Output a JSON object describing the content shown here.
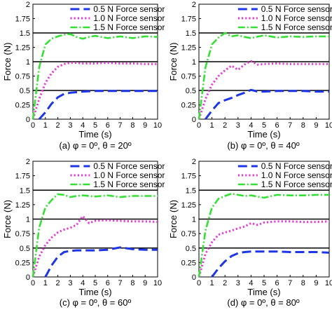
{
  "figure": {
    "panel_caption_prefixes": [
      "(a)",
      "(b)",
      "(c)",
      "(d)"
    ],
    "caption_text": [
      "(a) φ = 0º, θ = 20º",
      "(b) φ = 0º, θ = 40º",
      "(c) φ = 0º, θ = 60º",
      "(d) φ = 0º, θ = 80º"
    ],
    "x_label": "Time (s)",
    "y_label": "Force (N)",
    "x_ticks": [
      "0",
      "1",
      "2",
      "3",
      "4",
      "5",
      "6",
      "7",
      "8",
      "9",
      "10"
    ],
    "y_ticks": [
      "0",
      "0.25",
      "0.5",
      "0.75",
      "1",
      "1.25",
      "1.5",
      "1.75",
      "2"
    ],
    "legend": [
      "0.5 N Force sensor",
      "1.0 N Force sensor",
      "1.5 N Force sensor"
    ],
    "colors": {
      "s05": "#1e36e6",
      "s10": "#e63ad6",
      "s15": "#33e033",
      "ref": "#000000"
    }
  },
  "chart_data": [
    {
      "type": "line",
      "caption": "(a) φ = 0º, θ = 20º",
      "xlabel": "Time (s)",
      "ylabel": "Force (N)",
      "xlim": [
        0,
        10
      ],
      "ylim": [
        0,
        2
      ],
      "reference_lines": [
        0.5,
        1,
        1.5
      ],
      "legend_position": "top-right",
      "series": [
        {
          "name": "0.5 N Force sensor",
          "style": "dashed",
          "x": [
            0.5,
            1,
            1.5,
            2,
            2.5,
            3,
            3.5,
            4,
            5,
            6,
            7,
            8,
            9,
            10
          ],
          "y": [
            0,
            0.12,
            0.27,
            0.38,
            0.44,
            0.46,
            0.47,
            0.48,
            0.49,
            0.49,
            0.49,
            0.49,
            0.49,
            0.49
          ]
        },
        {
          "name": "1.0 N Force sensor",
          "style": "dotted",
          "x": [
            0,
            0.5,
            1,
            1.5,
            2,
            2.5,
            3,
            3.5,
            4,
            5,
            6,
            7,
            8,
            9,
            10
          ],
          "y": [
            0,
            0.35,
            0.63,
            0.8,
            0.91,
            0.96,
            0.98,
            0.98,
            0.97,
            0.97,
            0.98,
            0.97,
            0.97,
            0.96,
            0.96
          ]
        },
        {
          "name": "1.5 N Force sensor",
          "style": "dash-dot",
          "x": [
            0,
            0.5,
            1,
            1.5,
            2,
            2.5,
            3,
            3.5,
            4,
            4.5,
            5,
            6,
            7,
            8,
            9,
            10
          ],
          "y": [
            0,
            0.9,
            1.3,
            1.4,
            1.44,
            1.47,
            1.48,
            1.43,
            1.4,
            1.43,
            1.45,
            1.41,
            1.44,
            1.41,
            1.44,
            1.43
          ]
        }
      ]
    },
    {
      "type": "line",
      "caption": "(b) φ = 0º, θ = 40º",
      "xlabel": "Time (s)",
      "ylabel": "Force (N)",
      "xlim": [
        0,
        10
      ],
      "ylim": [
        0,
        2
      ],
      "reference_lines": [
        0.5,
        1,
        1.5
      ],
      "legend_position": "top-right",
      "series": [
        {
          "name": "0.5 N Force sensor",
          "style": "dashed",
          "x": [
            0.5,
            1,
            1.5,
            2,
            2.5,
            3,
            3.5,
            4,
            4.5,
            5,
            6,
            7,
            8,
            9,
            10
          ],
          "y": [
            0,
            0.15,
            0.28,
            0.33,
            0.37,
            0.42,
            0.46,
            0.51,
            0.48,
            0.48,
            0.49,
            0.49,
            0.49,
            0.48,
            0.48
          ]
        },
        {
          "name": "1.0 N Force sensor",
          "style": "dotted",
          "x": [
            0,
            0.5,
            1,
            1.5,
            2,
            2.5,
            3,
            3.5,
            4,
            4.5,
            5,
            6,
            7,
            8,
            9,
            10
          ],
          "y": [
            0,
            0.35,
            0.6,
            0.75,
            0.85,
            0.93,
            0.86,
            0.95,
            1.01,
            0.95,
            0.96,
            0.97,
            0.96,
            0.96,
            0.96,
            0.96
          ]
        },
        {
          "name": "1.5 N Force sensor",
          "style": "dash-dot",
          "x": [
            0,
            0.5,
            1,
            1.5,
            2,
            2.5,
            3,
            3.5,
            4,
            5,
            6,
            7,
            8,
            9,
            10
          ],
          "y": [
            0,
            0.9,
            1.3,
            1.42,
            1.5,
            1.44,
            1.46,
            1.43,
            1.41,
            1.46,
            1.42,
            1.44,
            1.43,
            1.44,
            1.44
          ]
        }
      ]
    },
    {
      "type": "line",
      "caption": "(c) φ = 0º, θ = 60º",
      "xlabel": "Time (s)",
      "ylabel": "Force (N)",
      "xlim": [
        0,
        10
      ],
      "ylim": [
        0,
        2
      ],
      "reference_lines": [
        0.5,
        1,
        1.5
      ],
      "legend_position": "top-right",
      "series": [
        {
          "name": "0.5 N Force sensor",
          "style": "dashed",
          "x": [
            1,
            1.5,
            2,
            2.5,
            3,
            3.5,
            4,
            5,
            6,
            7,
            8,
            9,
            10
          ],
          "y": [
            0,
            0.2,
            0.35,
            0.43,
            0.45,
            0.46,
            0.46,
            0.46,
            0.47,
            0.51,
            0.48,
            0.47,
            0.47
          ]
        },
        {
          "name": "1.0 N Force sensor",
          "style": "dotted",
          "x": [
            0,
            0.5,
            1,
            1.5,
            2,
            2.5,
            3,
            3.5,
            4,
            4.5,
            5,
            6,
            7,
            8,
            9,
            10
          ],
          "y": [
            0,
            0.35,
            0.55,
            0.68,
            0.77,
            0.82,
            0.85,
            0.9,
            1.05,
            0.93,
            0.97,
            0.98,
            0.97,
            0.96,
            0.96,
            0.95
          ]
        },
        {
          "name": "1.5 N Force sensor",
          "style": "dash-dot",
          "x": [
            0,
            0.5,
            1,
            1.5,
            2,
            2.5,
            3,
            3.5,
            4,
            5,
            6,
            7,
            8,
            9,
            10
          ],
          "y": [
            0,
            0.85,
            1.2,
            1.33,
            1.43,
            1.42,
            1.38,
            1.4,
            1.41,
            1.39,
            1.41,
            1.38,
            1.4,
            1.4,
            1.4
          ]
        }
      ]
    },
    {
      "type": "line",
      "caption": "(d) φ = 0º, θ = 80º",
      "xlabel": "Time (s)",
      "ylabel": "Force (N)",
      "xlim": [
        0,
        10
      ],
      "ylim": [
        0,
        2
      ],
      "reference_lines": [
        0.5,
        1,
        1.5
      ],
      "legend_position": "top-right",
      "series": [
        {
          "name": "0.5 N Force sensor",
          "style": "dashed",
          "x": [
            1,
            1.5,
            2,
            2.5,
            3,
            3.5,
            4,
            5,
            6,
            7,
            8,
            9,
            10
          ],
          "y": [
            0,
            0.15,
            0.27,
            0.36,
            0.41,
            0.43,
            0.44,
            0.44,
            0.44,
            0.43,
            0.43,
            0.43,
            0.42
          ]
        },
        {
          "name": "1.0 N Force sensor",
          "style": "dotted",
          "x": [
            0,
            0.5,
            1,
            1.5,
            2,
            2.5,
            3,
            3.5,
            4,
            4.5,
            5,
            6,
            7,
            8,
            9,
            10
          ],
          "y": [
            0,
            0.4,
            0.6,
            0.73,
            0.77,
            0.8,
            0.84,
            0.87,
            0.93,
            0.9,
            0.94,
            0.96,
            0.96,
            0.95,
            0.95,
            0.96
          ]
        },
        {
          "name": "1.5 N Force sensor",
          "style": "dash-dot",
          "x": [
            0,
            0.5,
            1,
            1.5,
            2,
            2.5,
            3,
            3.5,
            4,
            5,
            6,
            7,
            8,
            9,
            10
          ],
          "y": [
            0,
            0.8,
            1.2,
            1.35,
            1.4,
            1.44,
            1.42,
            1.4,
            1.41,
            1.37,
            1.42,
            1.41,
            1.41,
            1.42,
            1.42
          ]
        }
      ]
    }
  ]
}
